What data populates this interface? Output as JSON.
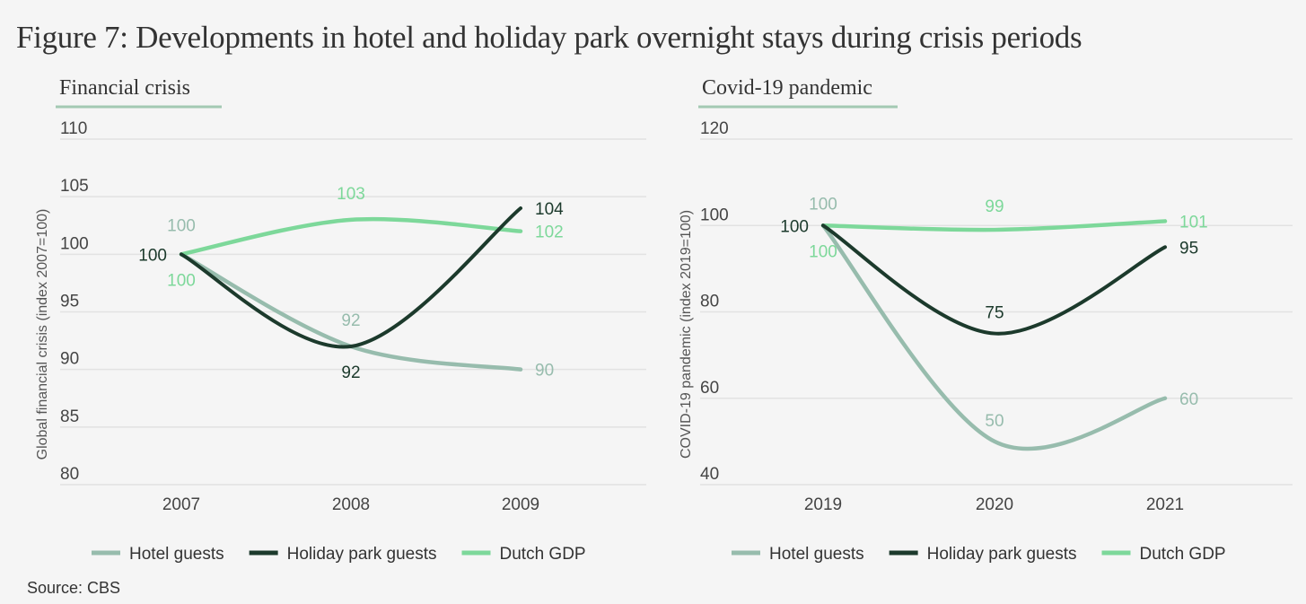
{
  "title": "Figure 7: Developments in hotel and holiday park overnight stays during crisis periods",
  "source": "Source: CBS",
  "colors": {
    "hotel": "#97bcad",
    "holiday": "#1c3a2c",
    "gdp": "#7dd89a",
    "grid": "#e2e2e2",
    "underline": "#a3c9b3"
  },
  "chart_data": [
    {
      "type": "line",
      "title": "Financial crisis",
      "ylabel": "Global financial crisis (index 2007=100)",
      "categories": [
        "2007",
        "2008",
        "2009"
      ],
      "ylim": [
        80,
        110
      ],
      "yticks": [
        110,
        105,
        100,
        95,
        90,
        85,
        80
      ],
      "grid": true,
      "legend_position": "bottom",
      "series": [
        {
          "name": "Hotel guests",
          "key": "hotel",
          "values": [
            100,
            92,
            90
          ],
          "labels": [
            "100",
            "92",
            "90"
          ]
        },
        {
          "name": "Holiday park guests",
          "key": "holiday",
          "values": [
            100,
            92,
            104
          ],
          "labels": [
            "100",
            "92",
            "104"
          ]
        },
        {
          "name": "Dutch GDP",
          "key": "gdp",
          "values": [
            100,
            103,
            102
          ],
          "labels": [
            "100",
            "103",
            "102"
          ]
        }
      ]
    },
    {
      "type": "line",
      "title": "Covid-19 pandemic",
      "ylabel": "COVID-19 pandemic (index 2019=100)",
      "categories": [
        "2019",
        "2020",
        "2021"
      ],
      "ylim": [
        40,
        120
      ],
      "yticks": [
        120,
        100,
        80,
        60,
        40
      ],
      "grid": true,
      "legend_position": "bottom",
      "series": [
        {
          "name": "Hotel guests",
          "key": "hotel",
          "values": [
            100,
            50,
            60
          ],
          "labels": [
            "100",
            "50",
            "60"
          ]
        },
        {
          "name": "Holiday park guests",
          "key": "holiday",
          "values": [
            100,
            75,
            95
          ],
          "labels": [
            "100",
            "75",
            "95"
          ]
        },
        {
          "name": "Dutch GDP",
          "key": "gdp",
          "values": [
            100,
            99,
            101
          ],
          "labels": [
            "100",
            "99",
            "101"
          ]
        }
      ]
    }
  ]
}
